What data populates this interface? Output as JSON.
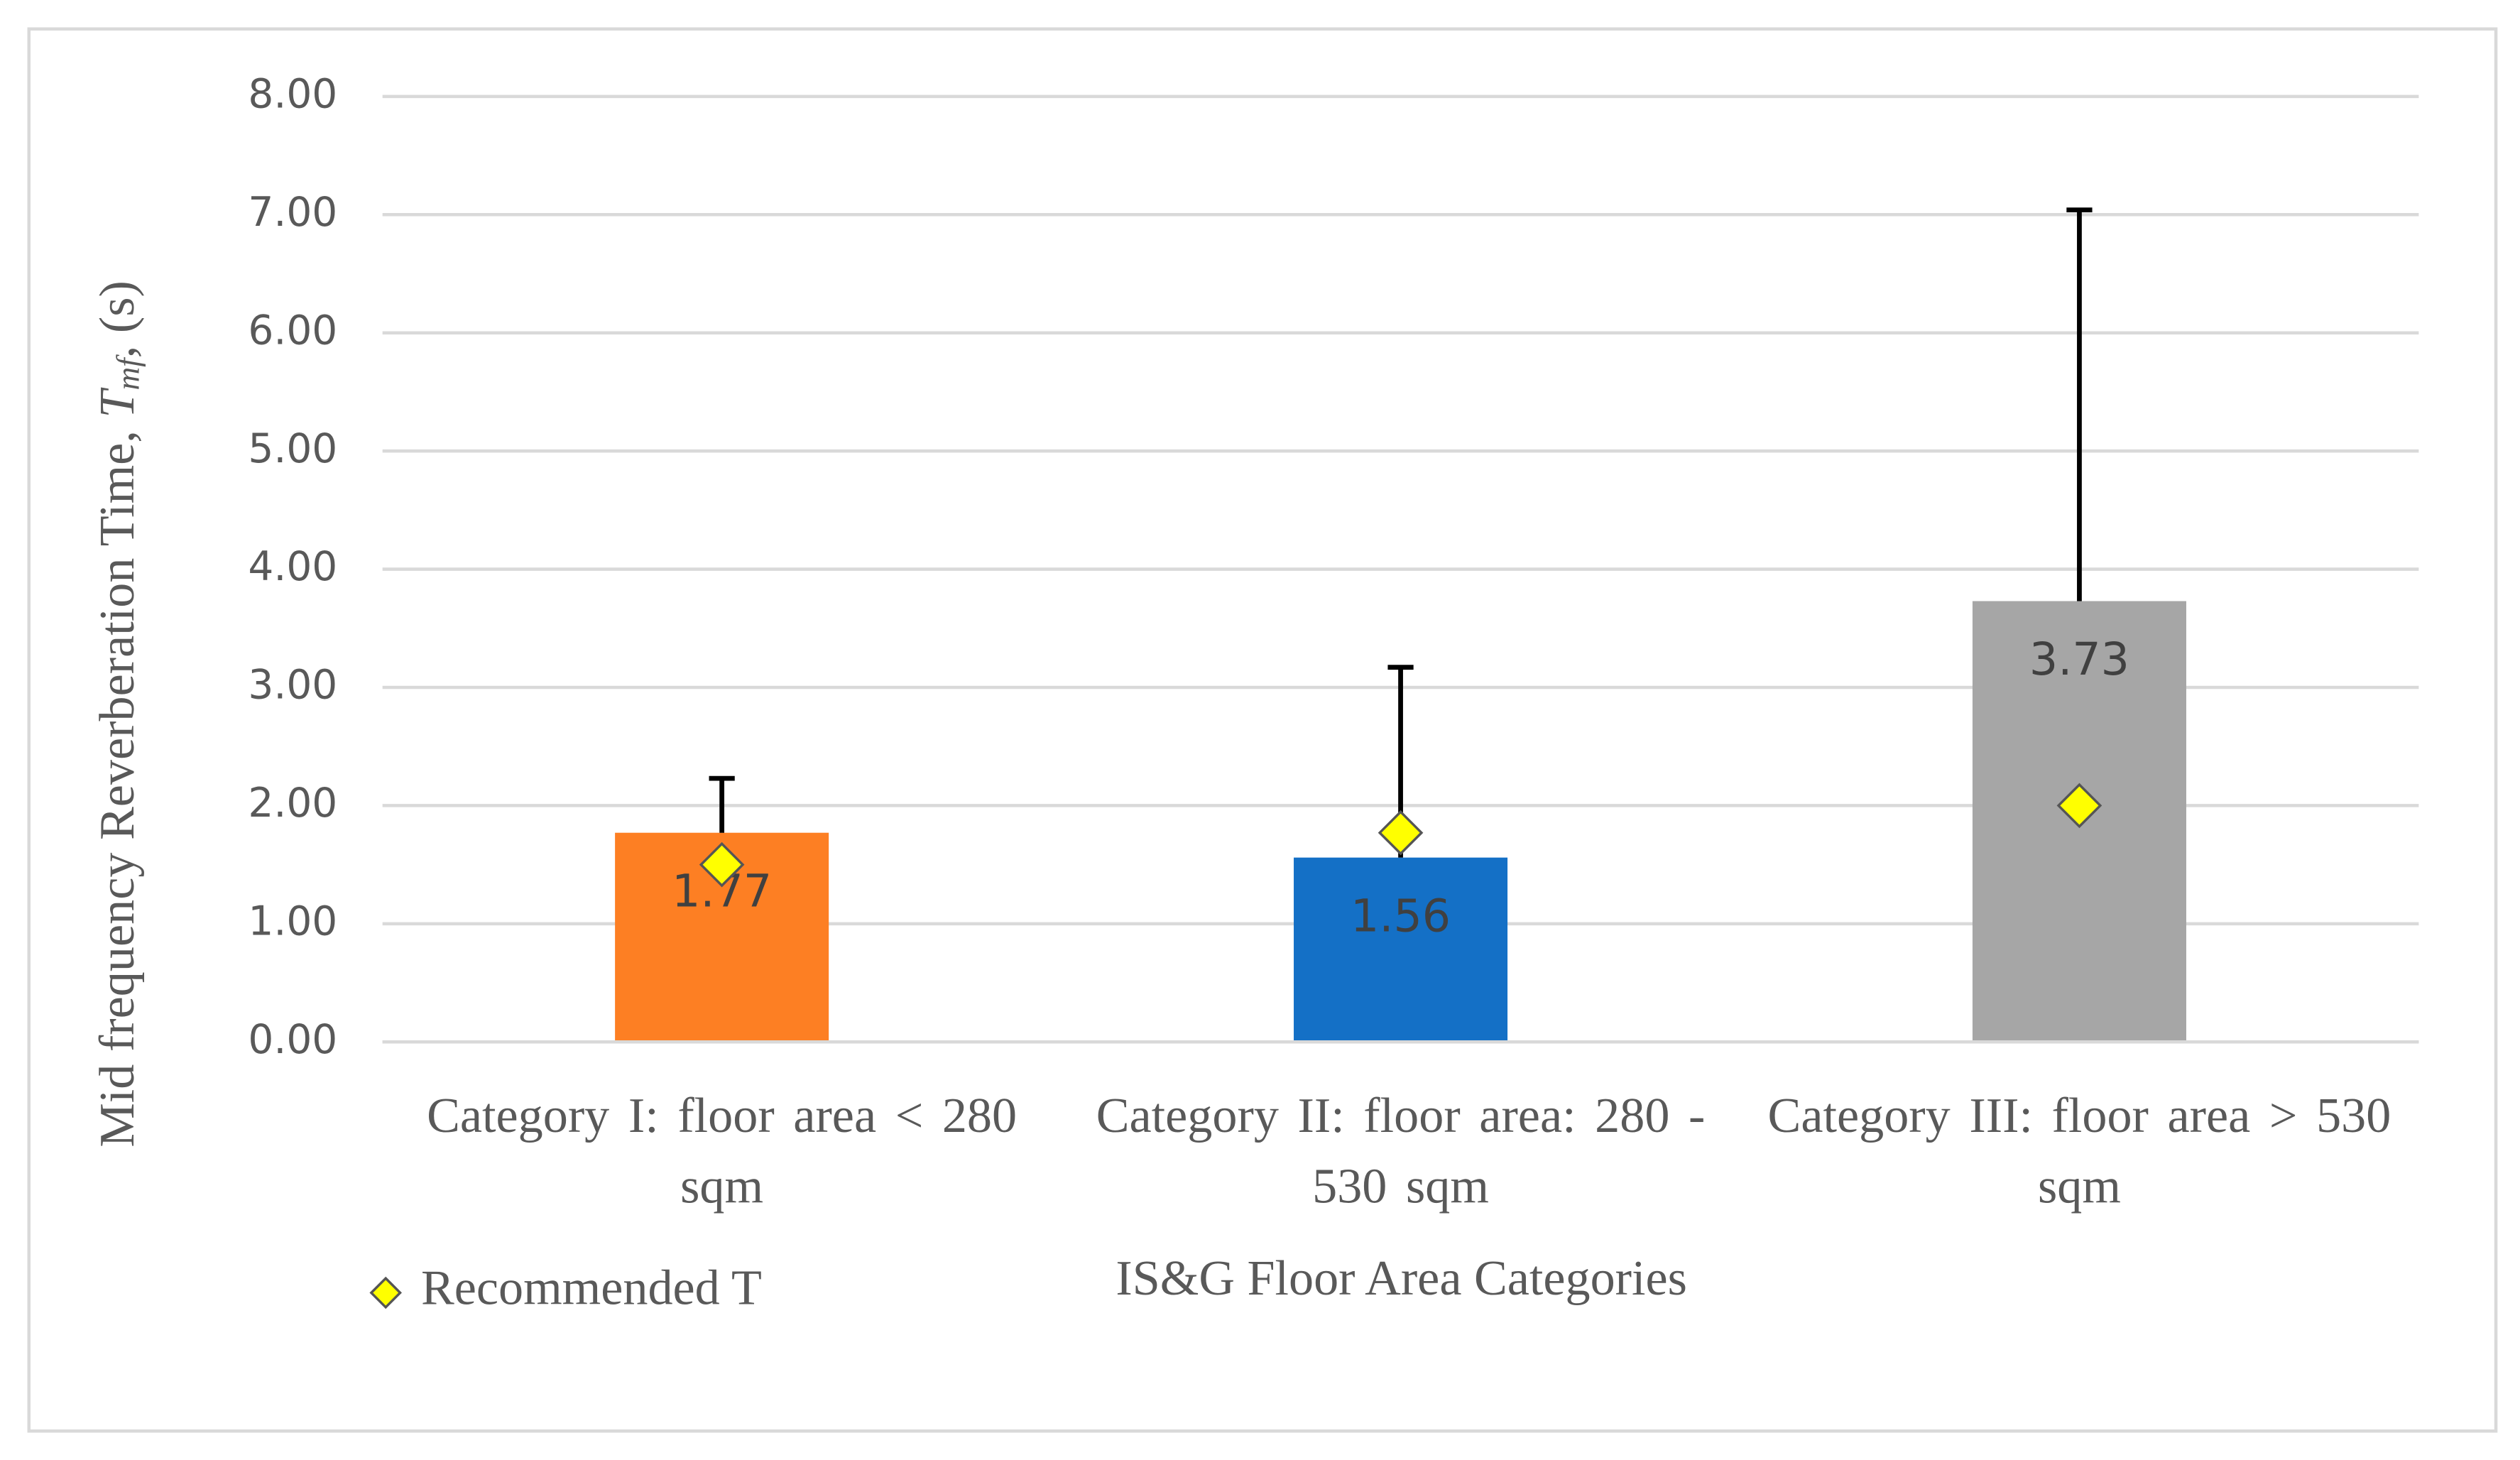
{
  "chart_data": {
    "type": "bar",
    "y_label": {
      "text": "Mid frequency Reverberation Time, ",
      "symbol": "T",
      "subscript": "mf",
      "unit": ",  (s)"
    },
    "x_label": "IS&G Floor Area Categories",
    "categories": [
      "Category  I:  floor area < 280 sqm",
      "Category  II: floor area:  280 - 530  sqm",
      "Category  III: floor area > 530 sqm"
    ],
    "values": [
      1.77,
      1.56,
      3.73
    ],
    "errors": [
      0.46,
      1.61,
      3.31
    ],
    "colors": [
      "#fd7f23",
      "#1470c6",
      "#a6a6a6"
    ],
    "markers": {
      "name": "Recommended T",
      "color": "#ffff00",
      "values": [
        1.5,
        1.77,
        2.0
      ]
    },
    "ylim": [
      0,
      8
    ],
    "yticks": [
      {
        "value": 0,
        "label": "0.00"
      },
      {
        "value": 1,
        "label": "1.00"
      },
      {
        "value": 2,
        "label": "2.00"
      },
      {
        "value": 3,
        "label": "3.00"
      },
      {
        "value": 4,
        "label": "4.00"
      },
      {
        "value": 5,
        "label": "5.00"
      },
      {
        "value": 6,
        "label": "6.00"
      },
      {
        "value": 7,
        "label": "7.00"
      },
      {
        "value": 8,
        "label": "8.00"
      }
    ],
    "grid": true,
    "legend": "bottom-left"
  }
}
